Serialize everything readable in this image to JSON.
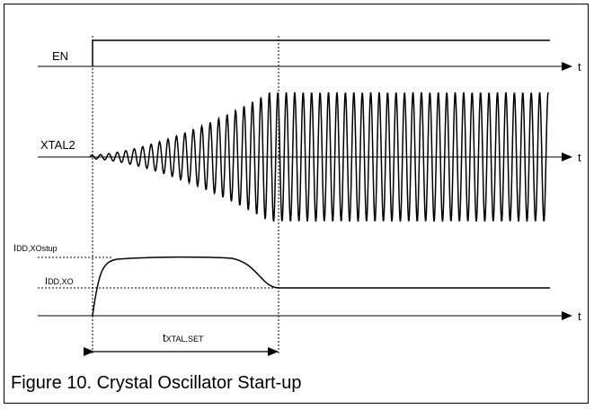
{
  "signals": {
    "en": "EN",
    "xtal2": "XTAL2",
    "idd_startup": {
      "main": "I",
      "sub": "DD,XOstup"
    },
    "idd_xo": {
      "main": "I",
      "sub": "DD,XO"
    }
  },
  "axis_label": "t",
  "interval_label": {
    "main": "t",
    "sub": "XTAL,SET"
  },
  "caption": "Figure 10. Crystal Oscillator Start-up",
  "colors": {
    "ink": "#000000",
    "background": "#ffffff"
  }
}
